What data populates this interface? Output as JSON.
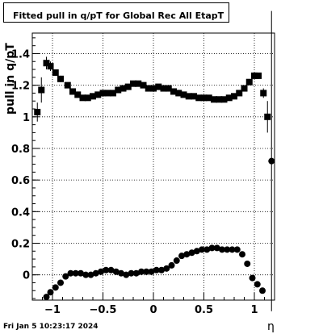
{
  "chart_data": {
    "type": "scatter",
    "title": "Fitted pull in q/pT for Global Rec All EtapT",
    "xlabel": "η",
    "ylabel": "pull in q/pT",
    "x_ticks": [
      -1,
      -0.5,
      0,
      0.5,
      1
    ],
    "x_tick_labels": [
      "−1",
      "−0.5",
      "0",
      "0.5",
      "1"
    ],
    "y_ticks": [
      0,
      0.2,
      0.4,
      0.6,
      0.8,
      1,
      1.2,
      1.4
    ],
    "y_tick_labels": [
      "0",
      "0.2",
      "0.4",
      "0.6",
      "0.8",
      "1",
      "1.2",
      "1.4"
    ],
    "xlim": [
      -1.2,
      1.2
    ],
    "ylim": [
      -0.16,
      1.53
    ],
    "grid": true,
    "legend": "none",
    "series": [
      {
        "marker": "square",
        "points": [
          {
            "x": -1.15,
            "y": 1.03,
            "err": 0.06
          },
          {
            "x": -1.11,
            "y": 1.17,
            "err": 0.08
          },
          {
            "x": -1.06,
            "y": 1.34,
            "err": 0.04
          },
          {
            "x": -1.02,
            "y": 1.32,
            "err": 0.03
          },
          {
            "x": -0.97,
            "y": 1.28,
            "err": 0.02
          },
          {
            "x": -0.92,
            "y": 1.24,
            "err": 0.02
          },
          {
            "x": -0.85,
            "y": 1.2
          },
          {
            "x": -0.8,
            "y": 1.16
          },
          {
            "x": -0.75,
            "y": 1.14
          },
          {
            "x": -0.7,
            "y": 1.12
          },
          {
            "x": -0.65,
            "y": 1.12
          },
          {
            "x": -0.6,
            "y": 1.13
          },
          {
            "x": -0.55,
            "y": 1.14
          },
          {
            "x": -0.5,
            "y": 1.15
          },
          {
            "x": -0.45,
            "y": 1.15
          },
          {
            "x": -0.4,
            "y": 1.15
          },
          {
            "x": -0.35,
            "y": 1.17
          },
          {
            "x": -0.3,
            "y": 1.18
          },
          {
            "x": -0.25,
            "y": 1.19
          },
          {
            "x": -0.2,
            "y": 1.21
          },
          {
            "x": -0.15,
            "y": 1.21
          },
          {
            "x": -0.1,
            "y": 1.2
          },
          {
            "x": -0.05,
            "y": 1.18
          },
          {
            "x": 0.0,
            "y": 1.18
          },
          {
            "x": 0.05,
            "y": 1.19
          },
          {
            "x": 0.1,
            "y": 1.18
          },
          {
            "x": 0.15,
            "y": 1.18
          },
          {
            "x": 0.2,
            "y": 1.16
          },
          {
            "x": 0.25,
            "y": 1.15
          },
          {
            "x": 0.3,
            "y": 1.14
          },
          {
            "x": 0.35,
            "y": 1.13
          },
          {
            "x": 0.4,
            "y": 1.13
          },
          {
            "x": 0.45,
            "y": 1.12
          },
          {
            "x": 0.5,
            "y": 1.12
          },
          {
            "x": 0.55,
            "y": 1.12
          },
          {
            "x": 0.6,
            "y": 1.11
          },
          {
            "x": 0.65,
            "y": 1.11
          },
          {
            "x": 0.7,
            "y": 1.11
          },
          {
            "x": 0.75,
            "y": 1.12
          },
          {
            "x": 0.8,
            "y": 1.13
          },
          {
            "x": 0.85,
            "y": 1.15
          },
          {
            "x": 0.9,
            "y": 1.18
          },
          {
            "x": 0.95,
            "y": 1.22
          },
          {
            "x": 1.0,
            "y": 1.26,
            "err": 0.02
          },
          {
            "x": 1.04,
            "y": 1.26,
            "err": 0.02
          },
          {
            "x": 1.09,
            "y": 1.15,
            "err": 0.03
          },
          {
            "x": 1.13,
            "y": 1.0,
            "err": 0.1
          }
        ]
      },
      {
        "marker": "circle",
        "points": [
          {
            "x": -1.06,
            "y": -0.14
          },
          {
            "x": -1.02,
            "y": -0.11
          },
          {
            "x": -0.97,
            "y": -0.08
          },
          {
            "x": -0.92,
            "y": -0.05
          },
          {
            "x": -0.87,
            "y": -0.01
          },
          {
            "x": -0.82,
            "y": 0.01
          },
          {
            "x": -0.77,
            "y": 0.01
          },
          {
            "x": -0.72,
            "y": 0.01
          },
          {
            "x": -0.67,
            "y": 0.0
          },
          {
            "x": -0.62,
            "y": 0.0
          },
          {
            "x": -0.57,
            "y": 0.01
          },
          {
            "x": -0.52,
            "y": 0.02
          },
          {
            "x": -0.47,
            "y": 0.03
          },
          {
            "x": -0.42,
            "y": 0.03
          },
          {
            "x": -0.37,
            "y": 0.02
          },
          {
            "x": -0.32,
            "y": 0.01
          },
          {
            "x": -0.27,
            "y": 0.0
          },
          {
            "x": -0.22,
            "y": 0.01
          },
          {
            "x": -0.17,
            "y": 0.01
          },
          {
            "x": -0.12,
            "y": 0.02
          },
          {
            "x": -0.07,
            "y": 0.02
          },
          {
            "x": -0.02,
            "y": 0.02
          },
          {
            "x": 0.03,
            "y": 0.03
          },
          {
            "x": 0.08,
            "y": 0.03
          },
          {
            "x": 0.13,
            "y": 0.04
          },
          {
            "x": 0.18,
            "y": 0.06
          },
          {
            "x": 0.23,
            "y": 0.09
          },
          {
            "x": 0.28,
            "y": 0.12
          },
          {
            "x": 0.33,
            "y": 0.13
          },
          {
            "x": 0.38,
            "y": 0.14
          },
          {
            "x": 0.43,
            "y": 0.15
          },
          {
            "x": 0.48,
            "y": 0.16
          },
          {
            "x": 0.53,
            "y": 0.16
          },
          {
            "x": 0.58,
            "y": 0.17
          },
          {
            "x": 0.63,
            "y": 0.17
          },
          {
            "x": 0.68,
            "y": 0.16
          },
          {
            "x": 0.73,
            "y": 0.16
          },
          {
            "x": 0.78,
            "y": 0.16
          },
          {
            "x": 0.83,
            "y": 0.16
          },
          {
            "x": 0.88,
            "y": 0.13
          },
          {
            "x": 0.93,
            "y": 0.07
          },
          {
            "x": 0.98,
            "y": -0.02
          },
          {
            "x": 1.03,
            "y": -0.06
          },
          {
            "x": 1.08,
            "y": -0.1
          },
          {
            "x": 1.17,
            "y": 0.72,
            "err": 0.95
          }
        ]
      }
    ]
  },
  "footer": {
    "date": "Fri Jan  5 10:23:17 2024"
  }
}
